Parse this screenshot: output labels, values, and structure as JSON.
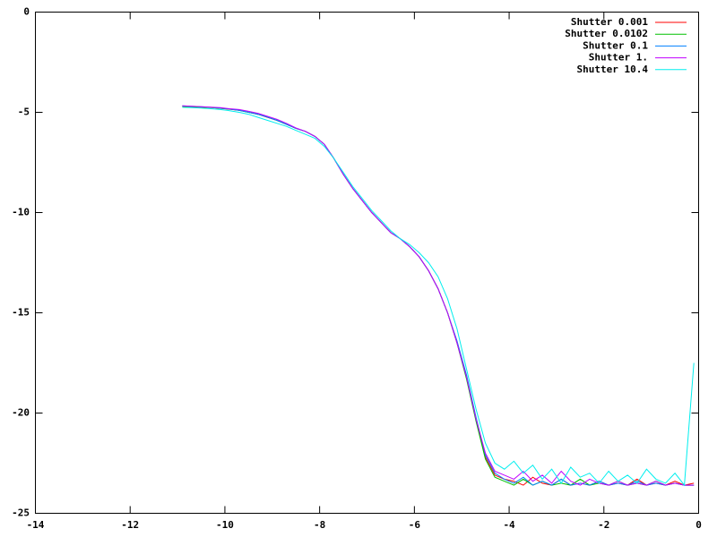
{
  "chart_data": {
    "type": "line",
    "xlim": [
      -14,
      0
    ],
    "xticks": [
      -14,
      -12,
      -10,
      -8,
      -6,
      -4,
      -2,
      0
    ],
    "ylim": [
      -25,
      0
    ],
    "yticks": [
      -25,
      -20,
      -15,
      -10,
      -5,
      0
    ],
    "legend": "top-right",
    "x": [
      -10.9,
      -10.7,
      -10.5,
      -10.3,
      -10.1,
      -9.9,
      -9.7,
      -9.5,
      -9.3,
      -9.1,
      -8.9,
      -8.7,
      -8.5,
      -8.3,
      -8.1,
      -7.9,
      -7.7,
      -7.5,
      -7.3,
      -7.1,
      -6.9,
      -6.7,
      -6.5,
      -6.3,
      -6.1,
      -5.9,
      -5.7,
      -5.5,
      -5.3,
      -5.1,
      -4.9,
      -4.7,
      -4.5,
      -4.3,
      -4.1,
      -3.9,
      -3.7,
      -3.5,
      -3.3,
      -3.1,
      -2.9,
      -2.7,
      -2.5,
      -2.3,
      -2.1,
      -1.9,
      -1.7,
      -1.5,
      -1.3,
      -1.1,
      -0.9,
      -0.7,
      -0.5,
      -0.3,
      -0.1
    ],
    "series": [
      {
        "name": "Shutter 0.001",
        "color": "#ff0000",
        "values": [
          -4.7,
          -4.72,
          -4.74,
          -4.76,
          -4.8,
          -4.85,
          -4.9,
          -5.0,
          -5.1,
          -5.25,
          -5.4,
          -5.6,
          -5.8,
          -5.95,
          -6.2,
          -6.6,
          -7.3,
          -8.1,
          -8.8,
          -9.4,
          -10.0,
          -10.5,
          -11.0,
          -11.3,
          -11.7,
          -12.2,
          -12.9,
          -13.8,
          -15.0,
          -16.5,
          -18.2,
          -20.3,
          -22.2,
          -23.1,
          -23.3,
          -23.4,
          -23.6,
          -23.2,
          -23.5,
          -23.6,
          -23.3,
          -23.6,
          -23.5,
          -23.6,
          -23.4,
          -23.6,
          -23.5,
          -23.6,
          -23.3,
          -23.6,
          -23.5,
          -23.6,
          -23.4,
          -23.6,
          -23.5
        ]
      },
      {
        "name": "Shutter 0.0102",
        "color": "#00c000",
        "values": [
          -4.7,
          -4.72,
          -4.74,
          -4.76,
          -4.8,
          -4.84,
          -4.9,
          -5.0,
          -5.1,
          -5.24,
          -5.4,
          -5.6,
          -5.8,
          -5.95,
          -6.2,
          -6.6,
          -7.3,
          -8.1,
          -8.8,
          -9.4,
          -10.0,
          -10.5,
          -11.0,
          -11.3,
          -11.7,
          -12.2,
          -12.9,
          -13.8,
          -15.0,
          -16.5,
          -18.3,
          -20.4,
          -22.3,
          -23.2,
          -23.4,
          -23.6,
          -23.3,
          -23.6,
          -23.4,
          -23.6,
          -23.5,
          -23.6,
          -23.3,
          -23.6,
          -23.5,
          -23.6,
          -23.4,
          -23.6,
          -23.5,
          -23.6,
          -23.4,
          -23.6,
          -23.5,
          -23.6,
          -23.6
        ]
      },
      {
        "name": "Shutter 0.1",
        "color": "#0080ff",
        "values": [
          -4.68,
          -4.7,
          -4.72,
          -4.75,
          -4.79,
          -4.84,
          -4.9,
          -5.0,
          -5.1,
          -5.24,
          -5.4,
          -5.6,
          -5.8,
          -5.95,
          -6.2,
          -6.6,
          -7.3,
          -8.1,
          -8.8,
          -9.4,
          -10.0,
          -10.5,
          -11.0,
          -11.3,
          -11.7,
          -12.2,
          -12.9,
          -13.8,
          -15.0,
          -16.4,
          -18.1,
          -20.2,
          -22.1,
          -23.0,
          -23.3,
          -23.5,
          -23.2,
          -23.6,
          -23.4,
          -23.6,
          -23.3,
          -23.6,
          -23.5,
          -23.6,
          -23.4,
          -23.6,
          -23.5,
          -23.6,
          -23.4,
          -23.6,
          -23.5,
          -23.6,
          -23.5,
          -23.6,
          -23.6
        ]
      },
      {
        "name": "Shutter 1.",
        "color": "#c000ff",
        "values": [
          -4.68,
          -4.7,
          -4.72,
          -4.74,
          -4.77,
          -4.82,
          -4.86,
          -4.95,
          -5.05,
          -5.2,
          -5.35,
          -5.55,
          -5.78,
          -5.95,
          -6.2,
          -6.6,
          -7.3,
          -8.1,
          -8.8,
          -9.4,
          -10.0,
          -10.5,
          -11.0,
          -11.3,
          -11.7,
          -12.2,
          -12.9,
          -13.8,
          -15.0,
          -16.5,
          -18.2,
          -20.3,
          -22.0,
          -22.9,
          -23.1,
          -23.3,
          -22.9,
          -23.4,
          -23.1,
          -23.5,
          -22.9,
          -23.4,
          -23.6,
          -23.3,
          -23.5,
          -23.6,
          -23.4,
          -23.6,
          -23.5,
          -23.6,
          -23.4,
          -23.6,
          -23.5,
          -23.6,
          -23.6
        ]
      },
      {
        "name": "Shutter 10.4",
        "color": "#00eeee",
        "values": [
          -4.75,
          -4.77,
          -4.79,
          -4.82,
          -4.86,
          -4.92,
          -5.0,
          -5.1,
          -5.25,
          -5.4,
          -5.55,
          -5.7,
          -5.9,
          -6.1,
          -6.3,
          -6.7,
          -7.3,
          -8.0,
          -8.7,
          -9.3,
          -9.9,
          -10.4,
          -10.9,
          -11.3,
          -11.6,
          -12.0,
          -12.5,
          -13.2,
          -14.3,
          -15.8,
          -17.8,
          -19.8,
          -21.5,
          -22.5,
          -22.8,
          -22.4,
          -23.0,
          -22.6,
          -23.3,
          -22.8,
          -23.5,
          -22.7,
          -23.2,
          -23.0,
          -23.5,
          -22.9,
          -23.4,
          -23.1,
          -23.5,
          -22.8,
          -23.3,
          -23.5,
          -23.0,
          -23.6,
          -17.5
        ]
      }
    ]
  }
}
